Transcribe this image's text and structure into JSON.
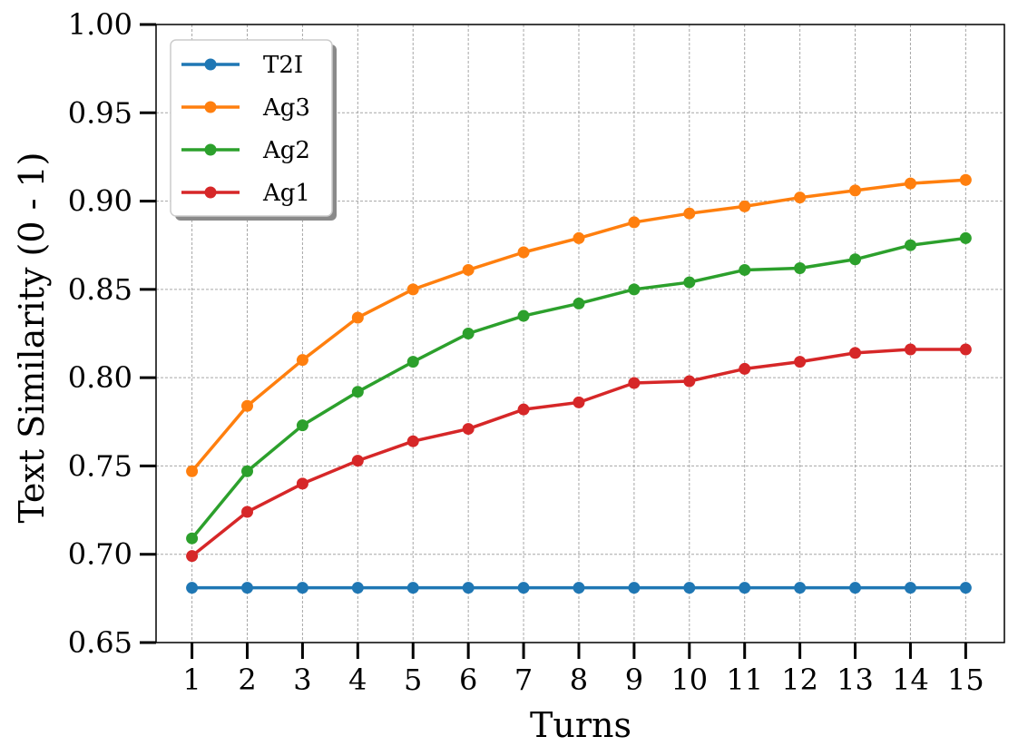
{
  "chart_data": {
    "type": "line",
    "title": "",
    "xlabel": "Turns",
    "ylabel": "Text Similarity (0 - 1)",
    "x": [
      1,
      2,
      3,
      4,
      5,
      6,
      7,
      8,
      9,
      10,
      11,
      12,
      13,
      14,
      15
    ],
    "xticks": [
      "1",
      "2",
      "3",
      "4",
      "5",
      "6",
      "7",
      "8",
      "9",
      "10",
      "11",
      "12",
      "13",
      "14",
      "15"
    ],
    "ylim": [
      0.65,
      1.0
    ],
    "yticks": [
      "0.65",
      "0.70",
      "0.75",
      "0.80",
      "0.85",
      "0.90",
      "0.95",
      "1.00"
    ],
    "grid": true,
    "legend_position": "top-left",
    "series": [
      {
        "name": "T2I",
        "color": "#1f77b4",
        "values": [
          0.681,
          0.681,
          0.681,
          0.681,
          0.681,
          0.681,
          0.681,
          0.681,
          0.681,
          0.681,
          0.681,
          0.681,
          0.681,
          0.681,
          0.681
        ]
      },
      {
        "name": "Ag3",
        "color": "#ff7f0e",
        "values": [
          0.747,
          0.784,
          0.81,
          0.834,
          0.85,
          0.861,
          0.871,
          0.879,
          0.888,
          0.893,
          0.897,
          0.902,
          0.906,
          0.91,
          0.912
        ]
      },
      {
        "name": "Ag2",
        "color": "#2ca02c",
        "values": [
          0.709,
          0.747,
          0.773,
          0.792,
          0.809,
          0.825,
          0.835,
          0.842,
          0.85,
          0.854,
          0.861,
          0.862,
          0.867,
          0.875,
          0.879
        ]
      },
      {
        "name": "Ag1",
        "color": "#d62728",
        "values": [
          0.699,
          0.724,
          0.74,
          0.753,
          0.764,
          0.771,
          0.782,
          0.786,
          0.797,
          0.798,
          0.805,
          0.809,
          0.814,
          0.816,
          0.816
        ]
      }
    ]
  }
}
